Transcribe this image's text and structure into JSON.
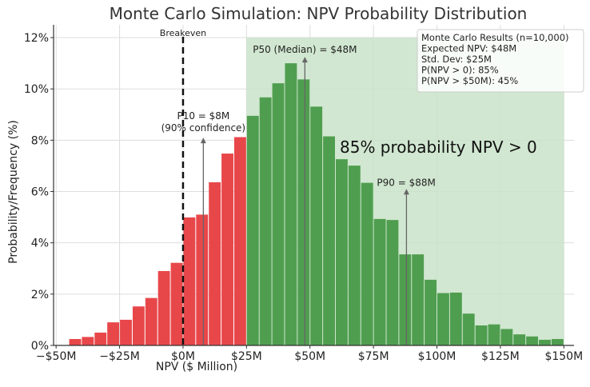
{
  "chart_data": {
    "type": "bar",
    "title": "Monte Carlo Simulation: NPV Probability Distribution",
    "xlabel": "NPV ($ Million)",
    "ylabel": "Probability/Frequency (%)",
    "xlim": [
      -51,
      154
    ],
    "ylim": [
      0,
      12.5
    ],
    "grid": true,
    "bin_width": 5,
    "x_ticks": [
      -50,
      -25,
      0,
      25,
      50,
      75,
      100,
      125,
      150
    ],
    "x_tick_labels": [
      "−$50M",
      "−$25M",
      "$0M",
      "$25M",
      "$50M",
      "$75M",
      "$100M",
      "$125M",
      "$150M"
    ],
    "y_ticks": [
      0,
      2,
      4,
      6,
      8,
      10,
      12
    ],
    "y_tick_labels": [
      "0%",
      "2%",
      "4%",
      "6%",
      "8%",
      "10%",
      "12%"
    ],
    "series": [
      {
        "color": "#e8474a",
        "bin_start": [
          -45,
          -40,
          -35,
          -30,
          -25,
          -20,
          -15,
          -10,
          -5,
          0,
          5,
          10,
          15,
          20
        ],
        "values": [
          0.25,
          0.33,
          0.5,
          0.9,
          1.0,
          1.52,
          1.85,
          2.9,
          3.22,
          4.99,
          5.1,
          6.36,
          7.48,
          8.12
        ]
      },
      {
        "color": "#4f9e4f",
        "bin_start": [
          25,
          30,
          35,
          40,
          45,
          50,
          55,
          60,
          65,
          70,
          75,
          80,
          85,
          90,
          95,
          100,
          105,
          110,
          115,
          120,
          125,
          130,
          135,
          140,
          145
        ],
        "values": [
          8.95,
          9.67,
          10.22,
          11.0,
          10.37,
          9.31,
          8.15,
          7.26,
          7.01,
          6.34,
          4.93,
          4.89,
          3.55,
          3.55,
          2.56,
          2.04,
          2.06,
          1.24,
          0.78,
          0.82,
          0.64,
          0.43,
          0.35,
          0.22,
          0.25
        ]
      }
    ],
    "shaded_region": {
      "x": [
        25,
        150
      ],
      "color": "#c9e3c9"
    },
    "breakeven": {
      "x": 0,
      "label": "Breakeven"
    },
    "annotations": [
      {
        "text": "P10 = $8M",
        "text2": "(90% confidence)",
        "x": 8,
        "arrow_top": 8.1
      },
      {
        "text": "P50 (Median) = $48M",
        "x": 48,
        "arrow_top": 11.25
      },
      {
        "text": "P90 = $88M",
        "x": 88,
        "arrow_top": 6.1
      }
    ],
    "big_annotation": "85% probability NPV > 0",
    "stats_box": [
      "Monte Carlo Results (n=10,000)",
      "Expected NPV: $48M",
      "Std. Dev: $25M",
      "P(NPV > 0): 85%",
      "P(NPV > $50M): 45%"
    ]
  }
}
